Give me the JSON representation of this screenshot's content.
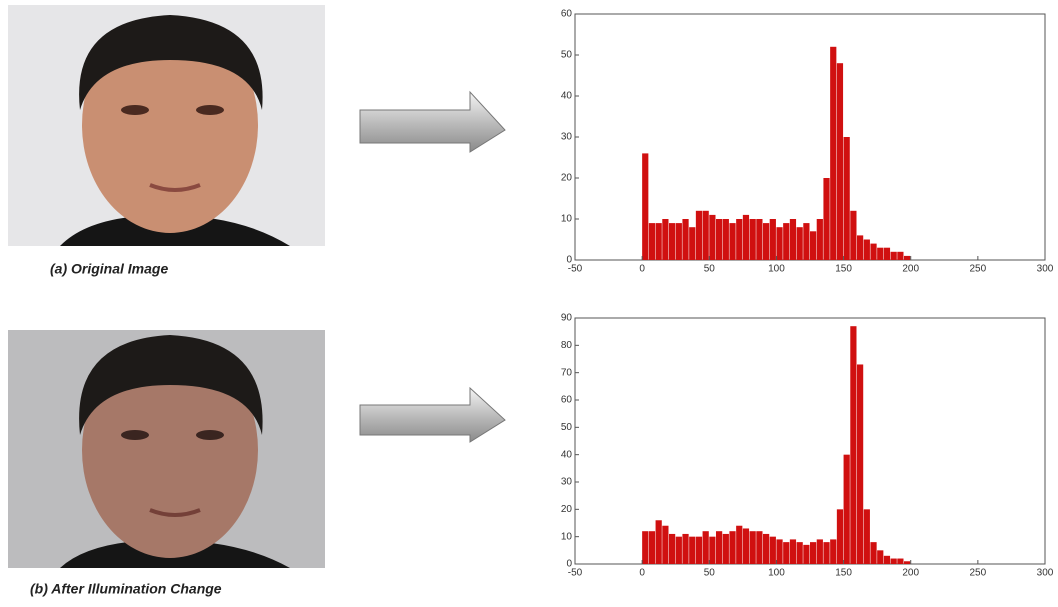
{
  "chart_data": [
    {
      "type": "histogram",
      "bins": [
        0,
        5,
        10,
        15,
        20,
        25,
        30,
        35,
        40,
        45,
        50,
        55,
        60,
        65,
        70,
        75,
        80,
        85,
        90,
        95,
        100,
        105,
        110,
        115,
        120,
        125,
        130,
        135,
        140,
        145,
        150,
        155,
        160,
        165,
        170,
        175,
        180,
        185,
        190,
        195,
        200
      ],
      "values": [
        26,
        9,
        9,
        10,
        9,
        9,
        10,
        8,
        12,
        12,
        11,
        10,
        10,
        9,
        10,
        11,
        10,
        10,
        9,
        10,
        8,
        9,
        10,
        8,
        9,
        7,
        10,
        20,
        52,
        48,
        30,
        12,
        6,
        5,
        4,
        3,
        3,
        2,
        2,
        1
      ],
      "color": "#d01010",
      "xlim": [
        -50,
        300
      ],
      "xticks": [
        -50,
        0,
        50,
        100,
        150,
        200,
        250,
        300
      ],
      "ylim": [
        0,
        60
      ],
      "yticks": [
        0,
        10,
        20,
        30,
        40,
        50,
        60
      ]
    },
    {
      "type": "histogram",
      "bins": [
        0,
        5,
        10,
        15,
        20,
        25,
        30,
        35,
        40,
        45,
        50,
        55,
        60,
        65,
        70,
        75,
        80,
        85,
        90,
        95,
        100,
        105,
        110,
        115,
        120,
        125,
        130,
        135,
        140,
        145,
        150,
        155,
        160,
        165,
        170,
        175,
        180,
        185,
        190,
        195,
        200
      ],
      "values": [
        12,
        12,
        16,
        14,
        11,
        10,
        11,
        10,
        10,
        12,
        10,
        12,
        11,
        12,
        14,
        13,
        12,
        12,
        11,
        10,
        9,
        8,
        9,
        8,
        7,
        8,
        9,
        8,
        9,
        20,
        40,
        87,
        73,
        20,
        8,
        5,
        3,
        2,
        2,
        1
      ],
      "color": "#d01010",
      "xlim": [
        -50,
        300
      ],
      "xticks": [
        -50,
        0,
        50,
        100,
        150,
        200,
        250,
        300
      ],
      "ylim": [
        0,
        90
      ],
      "yticks": [
        0,
        10,
        20,
        30,
        40,
        50,
        60,
        70,
        80,
        90
      ]
    }
  ],
  "figure": {
    "captions": [
      "(a) Original Image",
      "(b) After Illumination Change"
    ]
  }
}
